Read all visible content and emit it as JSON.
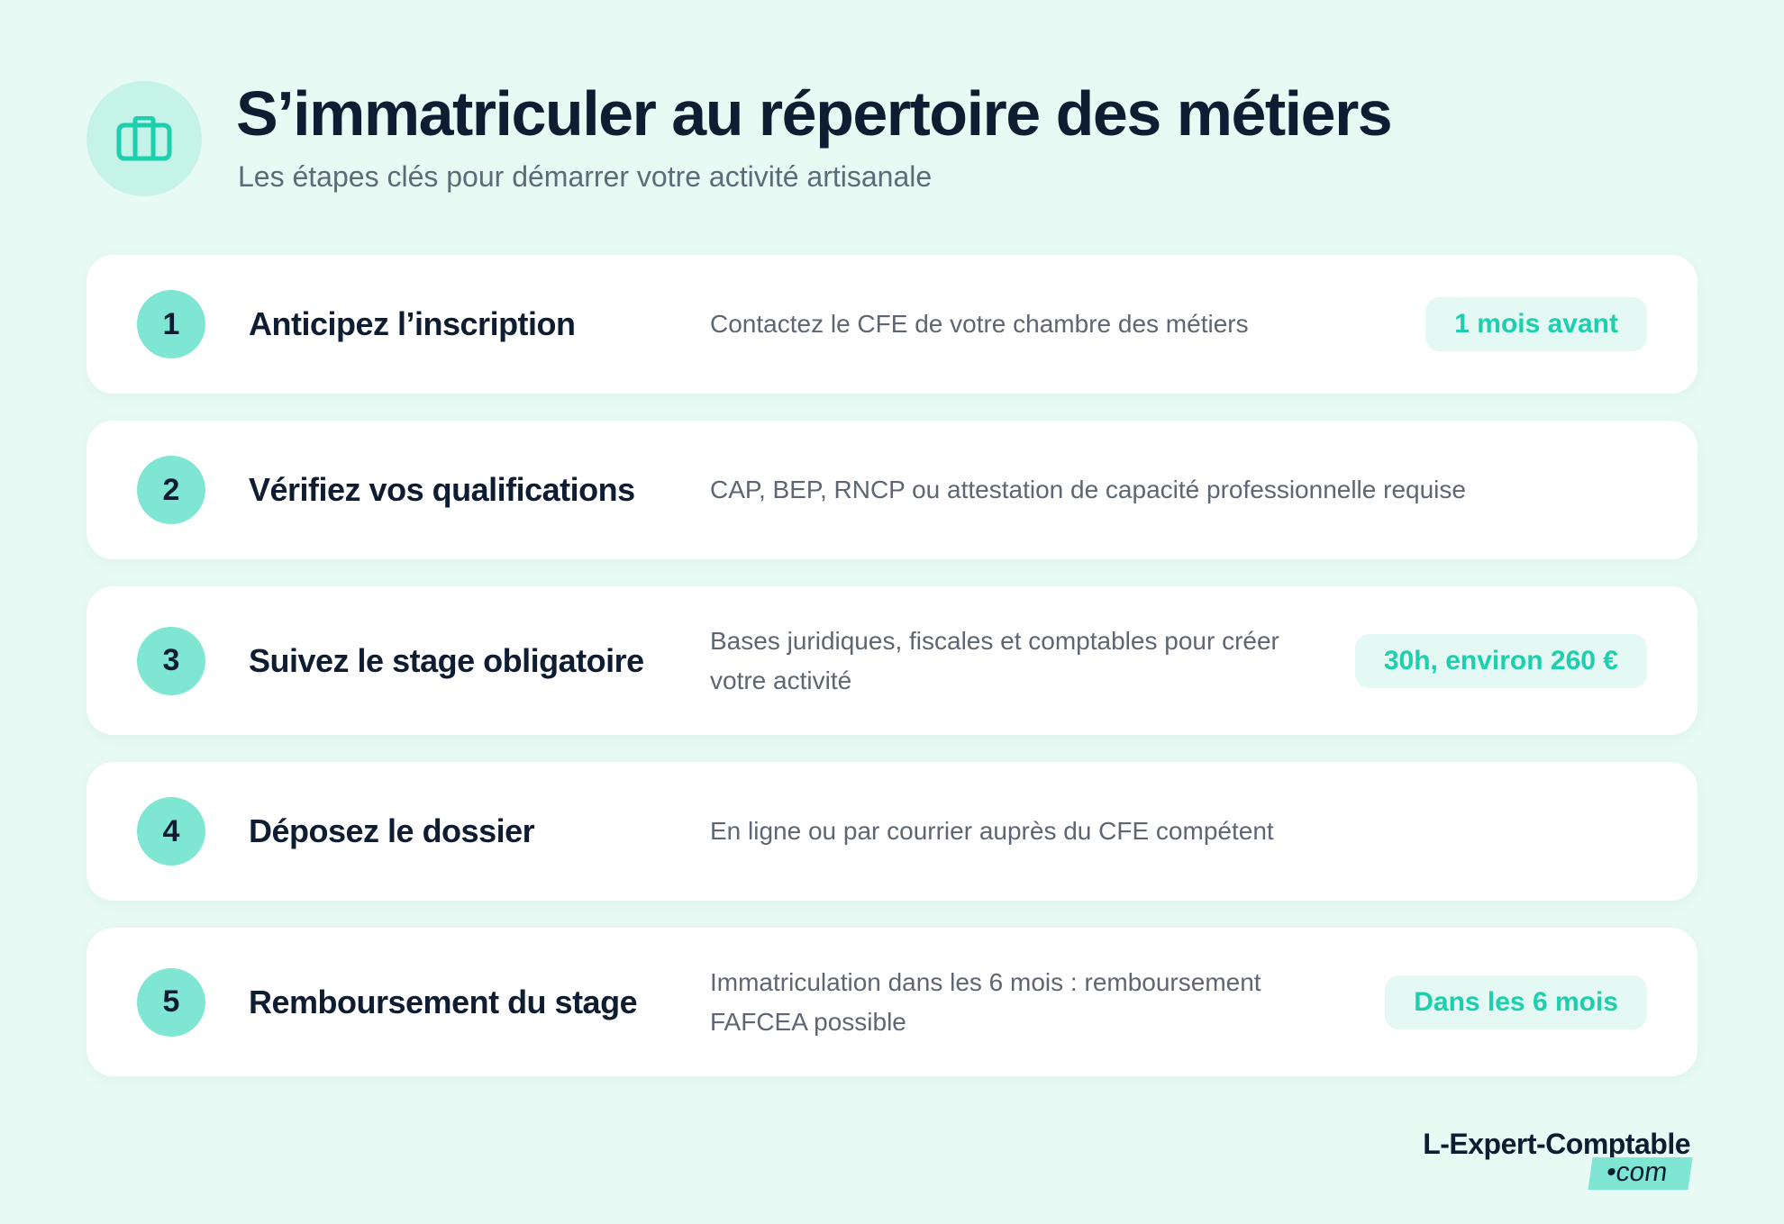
{
  "header": {
    "title": "S’immatriculer au répertoire des métiers",
    "subtitle": "Les étapes clés pour démarrer votre activité artisanale"
  },
  "steps": [
    {
      "number": "1",
      "title": "Anticipez l’inscription",
      "description": "Contactez le CFE de votre chambre des métiers",
      "badge": "1 mois avant"
    },
    {
      "number": "2",
      "title": "Vérifiez vos qualifications",
      "description": "CAP, BEP, RNCP ou attestation de capacité professionnelle requise"
    },
    {
      "number": "3",
      "title": "Suivez le stage obligatoire",
      "description": "Bases juridiques, fiscales et comptables pour créer votre activité",
      "badge": "30h, environ 260 €"
    },
    {
      "number": "4",
      "title": "Déposez le dossier",
      "description": "En ligne ou par courrier auprès du CFE compétent"
    },
    {
      "number": "5",
      "title": "Remboursement du stage",
      "description": "Immatriculation dans les 6 mois : remboursement FAFCEA possible",
      "badge": "Dans les 6 mois"
    }
  ],
  "logo": {
    "name": "L-Expert-Comptable",
    "suffix": "•com"
  }
}
